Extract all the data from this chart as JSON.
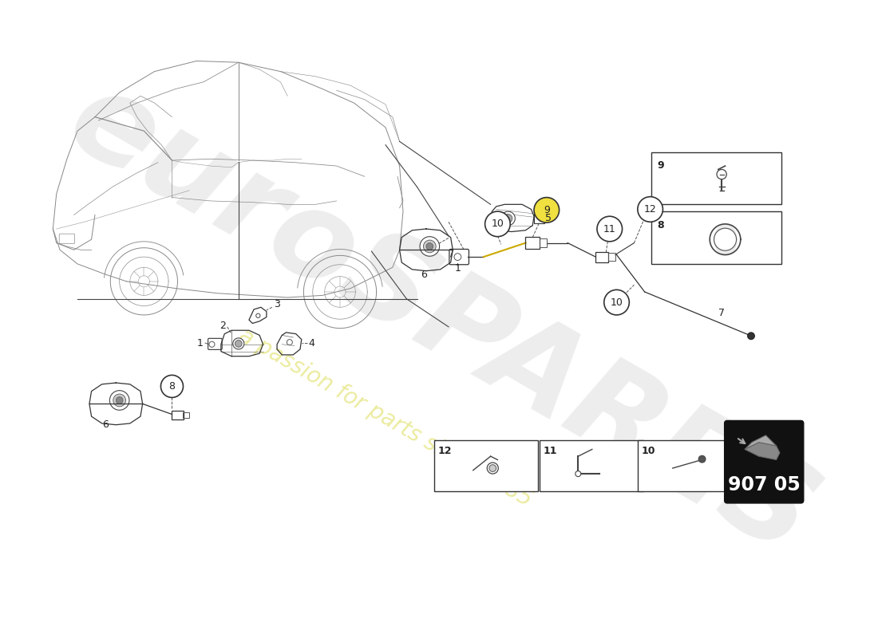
{
  "bg_color": "#ffffff",
  "watermark_text": "euroSPARES",
  "watermark_subtext": "a passion for parts since 1985",
  "part_number_box": "907 05",
  "line_color": "#333333",
  "circle_fill_yellow": "#f0e040",
  "circle_fill_white": "#ffffff",
  "circle_border": "#333333",
  "part_number_bg": "#111111",
  "part_number_text": "#ffffff",
  "car_color": "#888888",
  "ref_box_bg": "#ffffff",
  "ref_box_border": "#333333"
}
